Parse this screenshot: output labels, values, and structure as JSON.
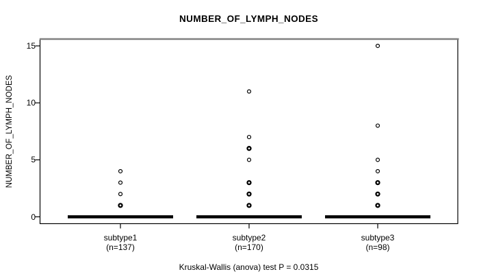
{
  "chart_data": {
    "type": "boxplot-strip",
    "title": "NUMBER_OF_LYMPH_NODES",
    "ylabel": "NUMBER_OF_LYMPH_NODES",
    "caption": "Kruskal-Wallis (anova) test P = 0.0315",
    "ylim": [
      0,
      15
    ],
    "yticks": [
      0,
      5,
      10,
      15
    ],
    "grid": false,
    "colors": {
      "point": "#000000",
      "frame": "#000000",
      "frame_top": "#808080",
      "text": "#000000",
      "background": "#ffffff"
    },
    "groups": [
      {
        "label": "subtype1",
        "n_label": "(n=137)",
        "median": 0,
        "points": [
          1,
          2,
          3,
          4
        ],
        "bold_points": [
          1
        ]
      },
      {
        "label": "subtype2",
        "n_label": "(n=170)",
        "median": 0,
        "points": [
          1,
          2,
          3,
          5,
          6,
          7,
          11
        ],
        "bold_points": [
          1,
          2,
          3,
          6
        ]
      },
      {
        "label": "subtype3",
        "n_label": "(n=98)",
        "median": 0,
        "points": [
          1,
          2,
          3,
          4,
          5,
          8,
          15
        ],
        "bold_points": [
          1,
          2,
          3
        ]
      }
    ]
  }
}
